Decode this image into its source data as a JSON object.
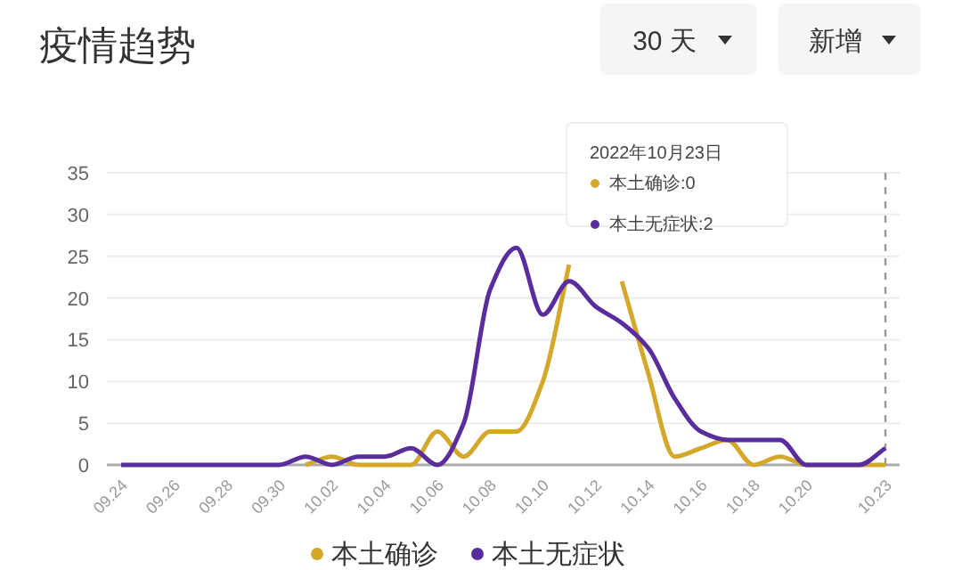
{
  "chart_data": {
    "type": "line",
    "title": "疫情趋势",
    "categories": [
      "09.24",
      null,
      "09.26",
      null,
      "09.28",
      null,
      "09.30",
      null,
      "10.02",
      null,
      "10.04",
      null,
      "10.06",
      null,
      "10.08",
      null,
      "10.10",
      null,
      "10.12",
      null,
      "10.14",
      null,
      "10.16",
      null,
      "10.18",
      null,
      "10.20",
      null,
      null,
      "10.23"
    ],
    "series": [
      {
        "name": "本土确诊",
        "color": "#d4a82a",
        "values": [
          null,
          null,
          null,
          null,
          null,
          null,
          null,
          0,
          1,
          0,
          0,
          0,
          4,
          1,
          4,
          4,
          10,
          24,
          null,
          22,
          11,
          1,
          2,
          3,
          0,
          1,
          0,
          0,
          0,
          0
        ]
      },
      {
        "name": "本土无症状",
        "color": "#5a2d9c",
        "values": [
          0,
          0,
          0,
          0,
          0,
          0,
          0,
          1,
          0,
          1,
          1,
          2,
          0,
          5,
          21,
          26,
          18,
          22,
          19,
          17,
          14,
          8,
          4,
          3,
          3,
          3,
          0,
          0,
          0,
          2
        ]
      }
    ],
    "ylim": [
      0,
      35
    ],
    "yticks": [
      0,
      5,
      10,
      15,
      20,
      25,
      30,
      35
    ],
    "grid": "y",
    "legend": "bottom",
    "marker": "none",
    "line_style": "solid",
    "ref_lines": [
      {
        "axis": "x",
        "value": "10.23",
        "color": "#999999",
        "line_style": "dashed"
      }
    ],
    "annotations": [
      "30 天",
      "新增",
      "2022年10月23日",
      "本土确诊:0",
      "本土无症状:2"
    ]
  }
}
